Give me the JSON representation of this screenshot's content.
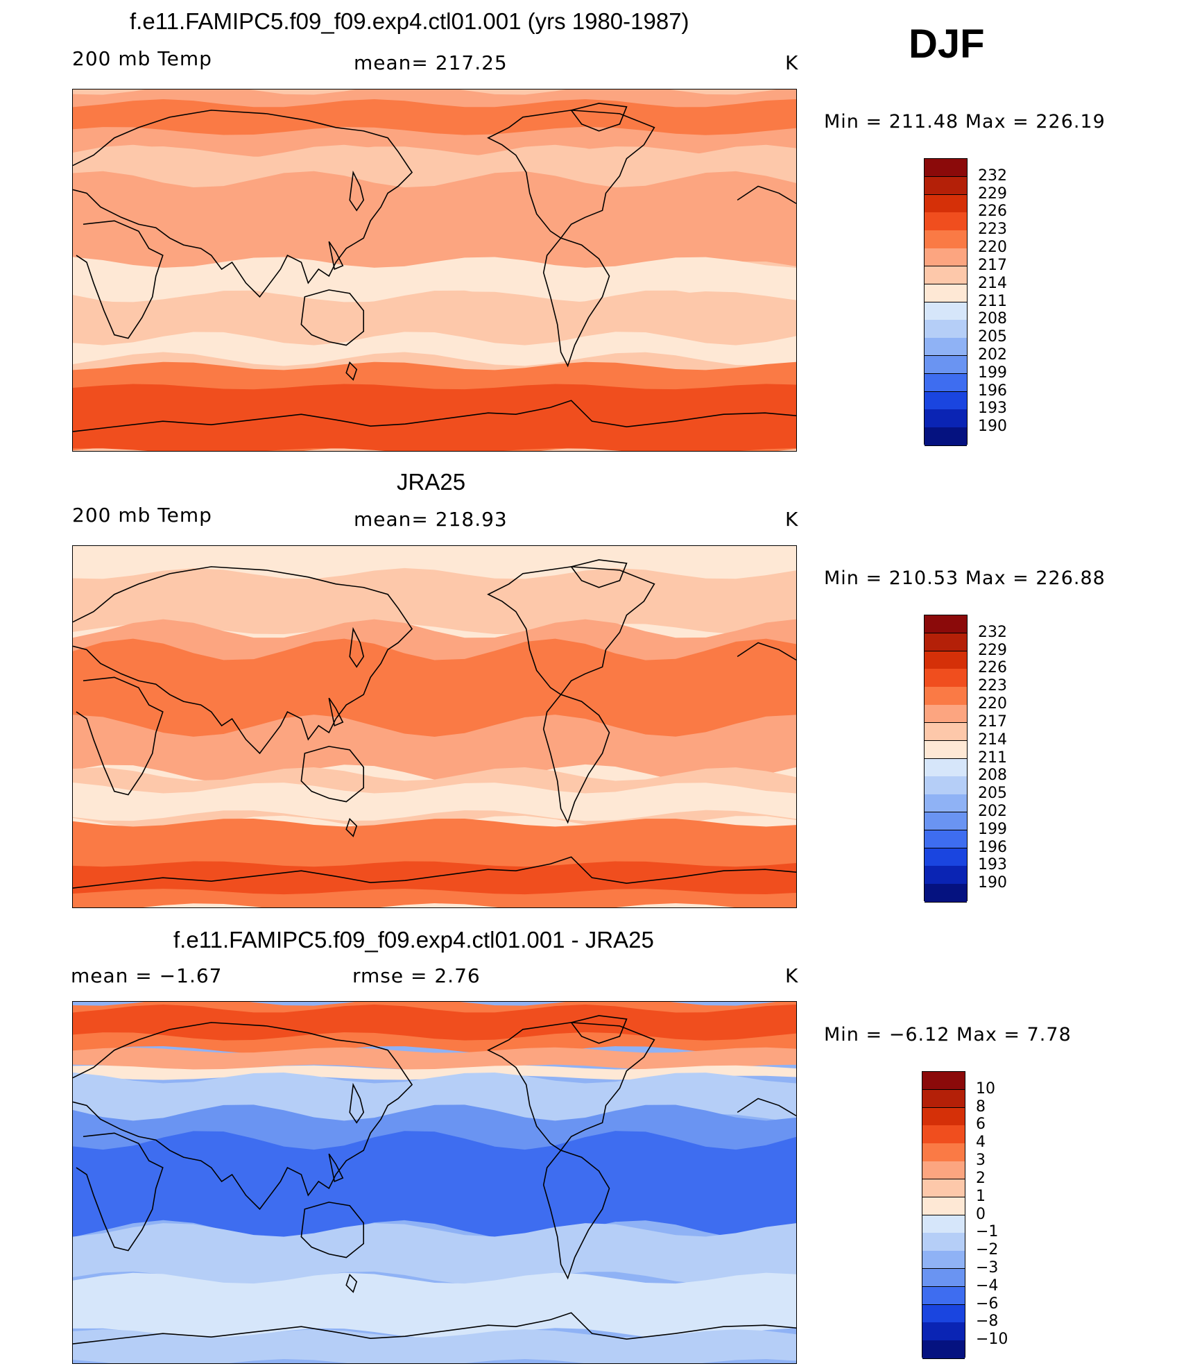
{
  "season": "DJF",
  "panels": [
    {
      "title": "f.e11.FAMIPC5.f09_f09.exp4.ctl01.001 (yrs 1980-1987)",
      "left_label": "200 mb Temp",
      "center_label": "mean=  217.25",
      "right_label": "K",
      "minmax": "Min  =  211.48  Max  =  226.19",
      "fill_levels": [
        5,
        5,
        6,
        7,
        7,
        8
      ],
      "colorbar_levels": [
        "232",
        "229",
        "226",
        "223",
        "220",
        "217",
        "214",
        "211",
        "208",
        "205",
        "202",
        "199",
        "196",
        "193",
        "190"
      ]
    },
    {
      "title": "JRA25",
      "left_label": "200 mb Temp",
      "center_label": "mean=  218.93",
      "right_label": "K",
      "minmax": "Min  =  210.53  Max  =  226.88",
      "fill_levels": [
        6,
        5,
        7,
        6,
        7,
        8
      ],
      "colorbar_levels": [
        "232",
        "229",
        "226",
        "223",
        "220",
        "217",
        "214",
        "211",
        "208",
        "205",
        "202",
        "199",
        "196",
        "193",
        "190"
      ]
    },
    {
      "title": "f.e11.FAMIPC5.f09_f09.exp4.ctl01.001 - JRA25",
      "left_label": "mean =    −1.67",
      "center_label": "rmse =     2.76",
      "right_label": "K",
      "minmax": "Min  =    −6.12  Max  =      7.78",
      "fill_levels": [
        11,
        13,
        4,
        4,
        5,
        6
      ],
      "colorbar_levels": [
        "10",
        "8",
        "6",
        "4",
        "3",
        "2",
        "1",
        "0",
        "−1",
        "−2",
        "−3",
        "−4",
        "−6",
        "−8",
        "−10"
      ]
    }
  ],
  "colormap": [
    "#8B0A0A",
    "#B42008",
    "#D53008",
    "#F04E1E",
    "#FA7A45",
    "#FCA580",
    "#FDC8AA",
    "#FEE8D5",
    "#D6E6FA",
    "#B5CEF7",
    "#8FB2F5",
    "#6A94F2",
    "#3E6DF0",
    "#1A45E0",
    "#0A24B4",
    "#051280"
  ],
  "coastline_color": "#000000"
}
